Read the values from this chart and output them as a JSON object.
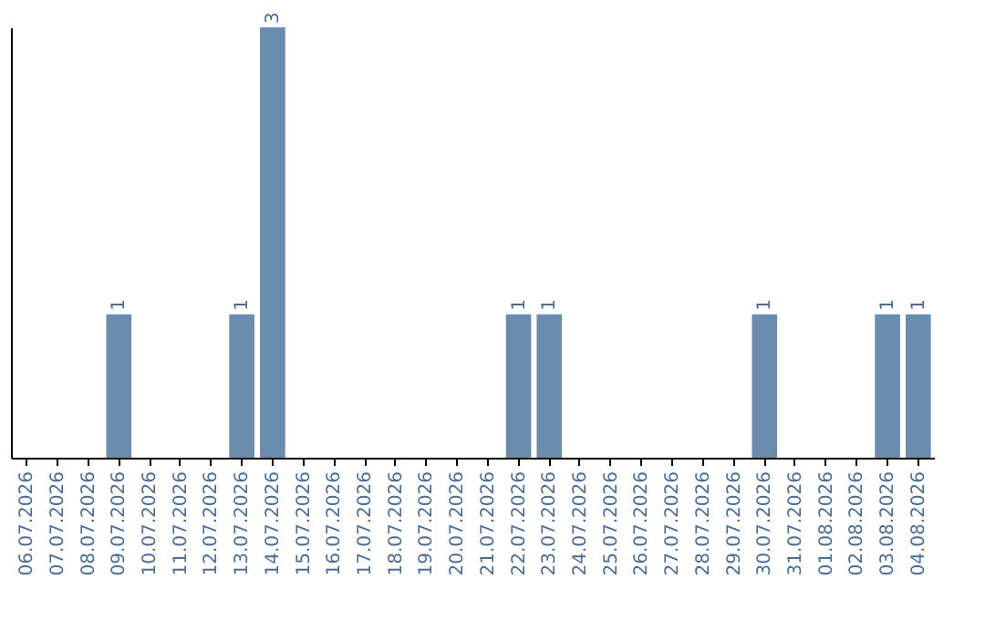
{
  "chart_data": {
    "type": "bar",
    "categories": [
      "06.07.2026",
      "07.07.2026",
      "08.07.2026",
      "09.07.2026",
      "10.07.2026",
      "11.07.2026",
      "12.07.2026",
      "13.07.2026",
      "14.07.2026",
      "15.07.2026",
      "16.07.2026",
      "17.07.2026",
      "18.07.2026",
      "19.07.2026",
      "20.07.2026",
      "21.07.2026",
      "22.07.2026",
      "23.07.2026",
      "24.07.2026",
      "25.07.2026",
      "26.07.2026",
      "27.07.2026",
      "28.07.2026",
      "29.07.2026",
      "30.07.2026",
      "31.07.2026",
      "01.08.2026",
      "02.08.2026",
      "03.08.2026",
      "04.08.2026"
    ],
    "values": [
      0,
      0,
      0,
      1,
      0,
      0,
      0,
      1,
      3,
      0,
      0,
      0,
      0,
      0,
      0,
      0,
      1,
      1,
      0,
      0,
      0,
      0,
      0,
      0,
      1,
      0,
      0,
      0,
      1,
      1
    ],
    "value_labels": [
      null,
      null,
      null,
      "1",
      null,
      null,
      null,
      "1",
      "3",
      null,
      null,
      null,
      null,
      null,
      null,
      null,
      "1",
      "1",
      null,
      null,
      null,
      null,
      null,
      null,
      "1",
      null,
      null,
      null,
      "1",
      "1"
    ],
    "color": "#6a8caf",
    "ylim": [
      0,
      3
    ],
    "tick_labels": "x",
    "grid": false
  }
}
